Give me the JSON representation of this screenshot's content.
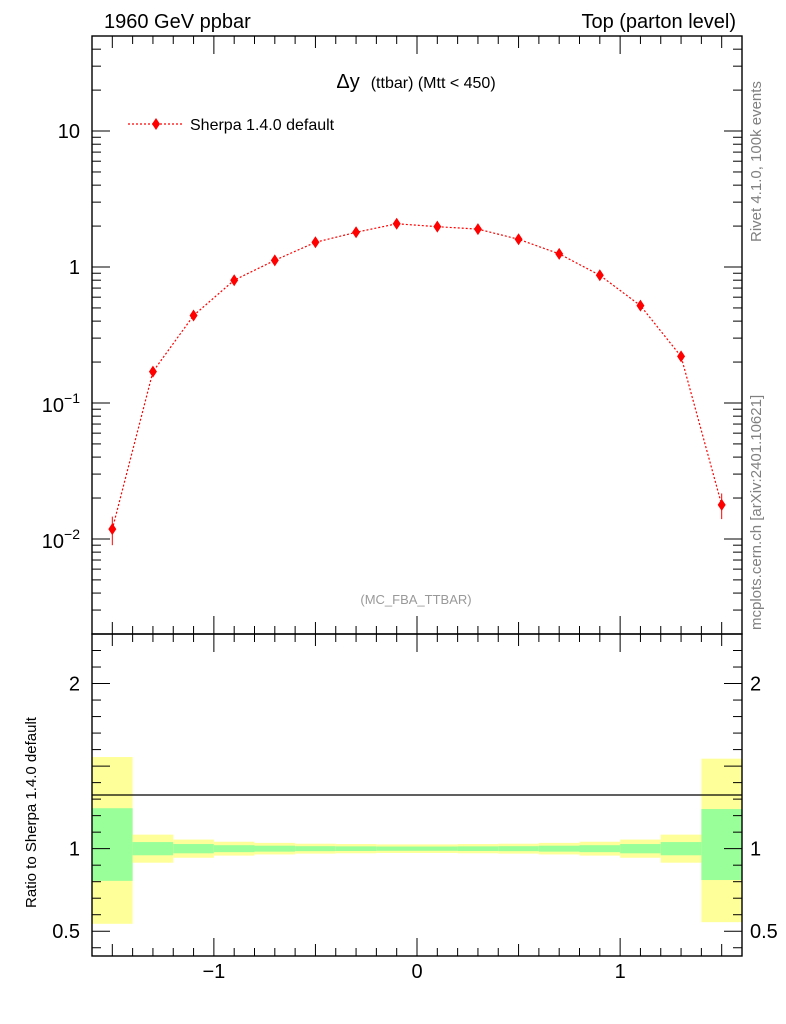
{
  "header": {
    "left": "1960 GeV ppbar",
    "right": "Top (parton level)"
  },
  "side": {
    "rivet": "Rivet 4.1.0,  100k events",
    "source": "mcplots.cern.ch [arXiv:2401.10621]"
  },
  "chart_data": {
    "type": "scatter",
    "title_main": "Δy",
    "title_rest": "(ttbar) (Mtt < 450)",
    "watermark": "(MC_FBA_TTBAR)",
    "xlim": [
      -1.6,
      1.6
    ],
    "ylim": [
      0.002,
      50
    ],
    "yscale": "log",
    "y_ticks": [
      {
        "value": 10,
        "label": "10",
        "base": "",
        "exp": ""
      },
      {
        "value": 1,
        "label": "1",
        "base": "",
        "exp": ""
      },
      {
        "value": 0.1,
        "label": "",
        "base": "10",
        "exp": "−1"
      },
      {
        "value": 0.01,
        "label": "",
        "base": "10",
        "exp": "−2"
      }
    ],
    "x_ticks": [
      {
        "value": -1,
        "label": "−1"
      },
      {
        "value": 0,
        "label": "0"
      },
      {
        "value": 1,
        "label": "1"
      }
    ],
    "series": [
      {
        "name": "Sherpa 1.4.0 default",
        "color": "#ff0000",
        "x": [
          -1.5,
          -1.3,
          -1.1,
          -0.9,
          -0.7,
          -0.5,
          -0.3,
          -0.1,
          0.1,
          0.3,
          0.5,
          0.7,
          0.9,
          1.1,
          1.3,
          1.5
        ],
        "y": [
          0.0118,
          0.17,
          0.44,
          0.8,
          1.12,
          1.52,
          1.8,
          2.08,
          1.98,
          1.9,
          1.6,
          1.25,
          0.87,
          0.52,
          0.22,
          0.0178
        ],
        "y_err_low": [
          0.0028,
          0.005,
          0.006,
          0.008,
          0.01,
          0.012,
          0.013,
          0.014,
          0.014,
          0.013,
          0.012,
          0.01,
          0.008,
          0.006,
          0.005,
          0.0038
        ],
        "y_err_high": [
          0.0028,
          0.005,
          0.006,
          0.008,
          0.01,
          0.012,
          0.013,
          0.014,
          0.014,
          0.013,
          0.012,
          0.01,
          0.008,
          0.006,
          0.005,
          0.0038
        ]
      }
    ],
    "ratio": {
      "ylabel": "Ratio to Sherpa 1.4.0 default",
      "ylim": [
        0.35,
        2.3
      ],
      "y_ticks": [
        {
          "value": 2,
          "label": "2"
        },
        {
          "value": 1,
          "label": "1"
        },
        {
          "value": 0.5,
          "label": "0.5"
        }
      ],
      "band_colors": {
        "outer": "#ffff99",
        "inner": "#99ff99"
      },
      "bins": [
        {
          "lo": -1.6,
          "hi": -1.4,
          "outer": [
            0.545,
            1.555
          ],
          "inner": [
            0.805,
            1.245
          ]
        },
        {
          "lo": -1.4,
          "hi": -1.2,
          "outer": [
            0.915,
            1.085
          ],
          "inner": [
            0.96,
            1.04
          ]
        },
        {
          "lo": -1.2,
          "hi": -1.0,
          "outer": [
            0.945,
            1.055
          ],
          "inner": [
            0.972,
            1.028
          ]
        },
        {
          "lo": -1.0,
          "hi": -0.8,
          "outer": [
            0.958,
            1.042
          ],
          "inner": [
            0.979,
            1.021
          ]
        },
        {
          "lo": -0.8,
          "hi": -0.6,
          "outer": [
            0.965,
            1.035
          ],
          "inner": [
            0.982,
            1.018
          ]
        },
        {
          "lo": -0.6,
          "hi": -0.4,
          "outer": [
            0.97,
            1.03
          ],
          "inner": [
            0.985,
            1.015
          ]
        },
        {
          "lo": -0.4,
          "hi": -0.2,
          "outer": [
            0.972,
            1.028
          ],
          "inner": [
            0.986,
            1.014
          ]
        },
        {
          "lo": -0.2,
          "hi": 0.0,
          "outer": [
            0.974,
            1.026
          ],
          "inner": [
            0.987,
            1.013
          ]
        },
        {
          "lo": 0.0,
          "hi": 0.2,
          "outer": [
            0.974,
            1.026
          ],
          "inner": [
            0.987,
            1.013
          ]
        },
        {
          "lo": 0.2,
          "hi": 0.4,
          "outer": [
            0.972,
            1.028
          ],
          "inner": [
            0.986,
            1.014
          ]
        },
        {
          "lo": 0.4,
          "hi": 0.6,
          "outer": [
            0.97,
            1.03
          ],
          "inner": [
            0.985,
            1.015
          ]
        },
        {
          "lo": 0.6,
          "hi": 0.8,
          "outer": [
            0.965,
            1.035
          ],
          "inner": [
            0.982,
            1.018
          ]
        },
        {
          "lo": 0.8,
          "hi": 1.0,
          "outer": [
            0.958,
            1.042
          ],
          "inner": [
            0.979,
            1.021
          ]
        },
        {
          "lo": 1.0,
          "hi": 1.2,
          "outer": [
            0.945,
            1.055
          ],
          "inner": [
            0.972,
            1.028
          ]
        },
        {
          "lo": 1.2,
          "hi": 1.4,
          "outer": [
            0.915,
            1.085
          ],
          "inner": [
            0.96,
            1.04
          ]
        },
        {
          "lo": 1.4,
          "hi": 1.6,
          "outer": [
            0.555,
            1.545
          ],
          "inner": [
            0.81,
            1.24
          ]
        }
      ]
    }
  }
}
